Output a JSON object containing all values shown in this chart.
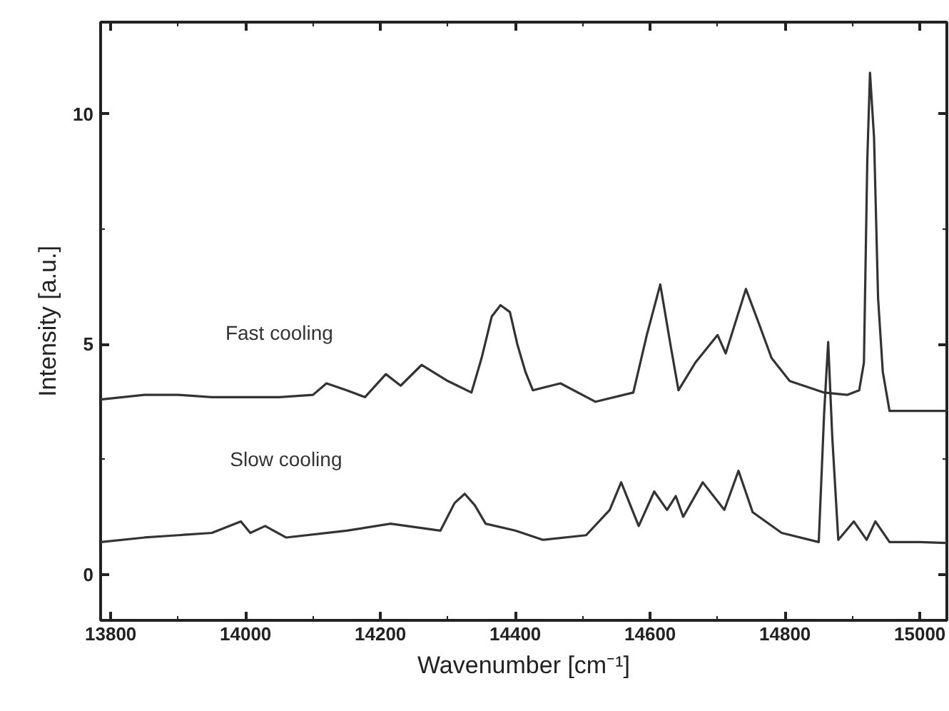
{
  "chart_data": {
    "type": "line",
    "xlabel": "Wavenumber [cm⁻¹]",
    "ylabel": "Intensity [a.u.]",
    "xlim": [
      13785,
      15040
    ],
    "ylim": [
      -1,
      12
    ],
    "xticks": [
      13800,
      14000,
      14200,
      14400,
      14600,
      14800,
      15000
    ],
    "yticks": [
      0,
      5,
      10
    ],
    "grid": false,
    "legend": false,
    "marker": "none",
    "line_style": "solid",
    "series": [
      {
        "name": "Fast cooling",
        "color": "#333333",
        "x": [
          13785,
          13850,
          13900,
          13950,
          14000,
          14050,
          14100,
          14120,
          14150,
          14177,
          14208,
          14230,
          14261,
          14300,
          14335,
          14350,
          14365,
          14378,
          14392,
          14403,
          14415,
          14426,
          14467,
          14519,
          14575,
          14595,
          14615,
          14630,
          14642,
          14667,
          14700,
          14712,
          14742,
          14760,
          14780,
          14807,
          14858,
          14892,
          14910,
          14917,
          14922,
          14926,
          14932,
          14938,
          14945,
          14955,
          15000,
          15040
        ],
        "values": [
          3.8,
          3.9,
          3.9,
          3.85,
          3.85,
          3.85,
          3.9,
          4.15,
          4.0,
          3.85,
          4.35,
          4.1,
          4.55,
          4.2,
          3.95,
          4.7,
          5.6,
          5.85,
          5.7,
          5.0,
          4.4,
          4.0,
          4.15,
          3.75,
          3.95,
          5.2,
          6.3,
          5.0,
          4.0,
          4.6,
          5.2,
          4.8,
          6.2,
          5.5,
          4.7,
          4.2,
          3.95,
          3.9,
          4.0,
          4.6,
          9.0,
          10.9,
          9.5,
          6.0,
          4.4,
          3.55,
          3.55,
          3.55
        ]
      },
      {
        "name": "Slow cooling",
        "color": "#333333",
        "x": [
          13785,
          13850,
          13900,
          13950,
          13993,
          14007,
          14029,
          14060,
          14150,
          14215,
          14289,
          14310,
          14325,
          14340,
          14356,
          14400,
          14441,
          14505,
          14540,
          14557,
          14583,
          14606,
          14625,
          14638,
          14649,
          14678,
          14710,
          14731,
          14752,
          14795,
          14850,
          14858,
          14864,
          14870,
          14879,
          14902,
          14921,
          14934,
          14955,
          15000,
          15040
        ],
        "values": [
          0.7,
          0.8,
          0.85,
          0.9,
          1.15,
          0.9,
          1.05,
          0.8,
          0.95,
          1.1,
          0.95,
          1.55,
          1.75,
          1.5,
          1.1,
          0.95,
          0.75,
          0.85,
          1.4,
          2.0,
          1.05,
          1.8,
          1.4,
          1.7,
          1.25,
          2.0,
          1.4,
          2.25,
          1.35,
          0.9,
          0.7,
          3.5,
          5.05,
          3.0,
          0.75,
          1.15,
          0.75,
          1.15,
          0.7,
          0.7,
          0.68
        ]
      }
    ]
  }
}
